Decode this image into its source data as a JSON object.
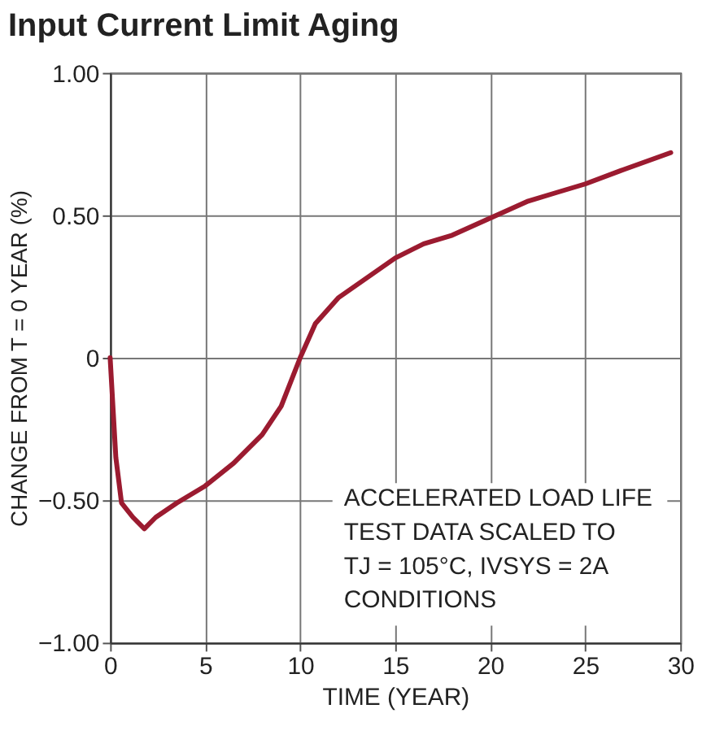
{
  "chart_data": {
    "type": "line",
    "title": "Input Current Limit Aging",
    "xlabel": "TIME (YEAR)",
    "ylabel": "CHANGE FROM T = 0 YEAR (%)",
    "series": [
      {
        "color": "#9b1b30",
        "x": [
          0,
          0.3,
          0.6,
          1.2,
          1.8,
          2.4,
          3.5,
          5,
          6.5,
          8,
          9,
          10,
          10.8,
          12,
          13.5,
          15,
          16.5,
          18,
          20,
          22,
          23.5,
          25,
          27,
          29.5
        ],
        "values": [
          0,
          -0.35,
          -0.51,
          -0.56,
          -0.6,
          -0.56,
          -0.51,
          -0.45,
          -0.37,
          -0.27,
          -0.17,
          0.0,
          0.12,
          0.21,
          0.28,
          0.35,
          0.4,
          0.43,
          0.49,
          0.55,
          0.58,
          0.61,
          0.66,
          0.72
        ]
      }
    ],
    "xlim": [
      0,
      30
    ],
    "xticks": [
      0,
      5,
      10,
      15,
      20,
      25,
      30
    ],
    "ylim": [
      -1,
      1
    ],
    "yticks": [
      {
        "value": -1,
        "label": "−1.00"
      },
      {
        "value": -0.5,
        "label": "−0.50"
      },
      0,
      {
        "value": 0.5,
        "label": "0.50"
      },
      {
        "value": 1,
        "label": "1.00"
      }
    ],
    "grid": true,
    "legend": false,
    "line_style": "solid",
    "annotations": [
      {
        "text": "ACCELERATED LOAD LIFE\nTEST DATA SCALED TO\nTJ = 105°C, IVSYS = 2A\nCONDITIONS"
      }
    ]
  }
}
